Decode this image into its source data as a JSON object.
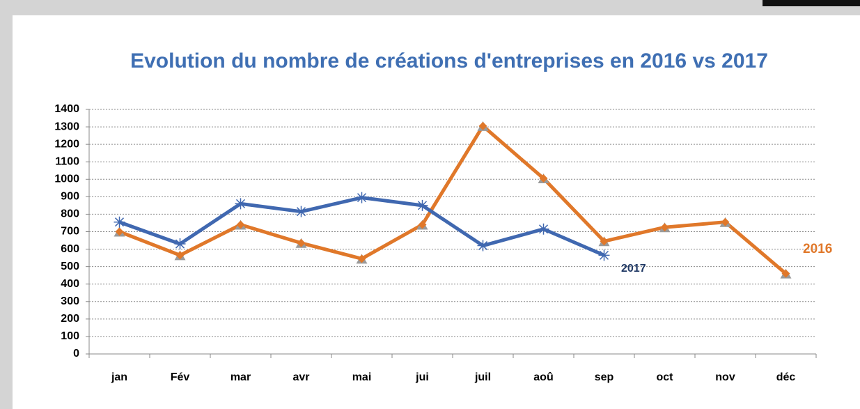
{
  "chart_data": {
    "type": "line",
    "title": "Evolution du nombre de créations d'entreprises en 2016 vs 2017",
    "categories": [
      "jan",
      "Fév",
      "mar",
      "avr",
      "mai",
      "jui",
      "juil",
      "aoû",
      "sep",
      "oct",
      "nov",
      "déc"
    ],
    "series": [
      {
        "name": "2016",
        "color": "#e0782a",
        "values": [
          700,
          565,
          740,
          635,
          545,
          740,
          1305,
          1005,
          645,
          725,
          755,
          460
        ]
      },
      {
        "name": "2017",
        "color": "#4068b0",
        "values": [
          755,
          630,
          860,
          815,
          895,
          850,
          620,
          715,
          565,
          null,
          null,
          null
        ]
      }
    ],
    "ylim": [
      0,
      1400
    ],
    "yticks": [
      0,
      100,
      200,
      300,
      400,
      500,
      600,
      700,
      800,
      900,
      1000,
      1100,
      1200,
      1300,
      1400
    ],
    "grid": true
  }
}
